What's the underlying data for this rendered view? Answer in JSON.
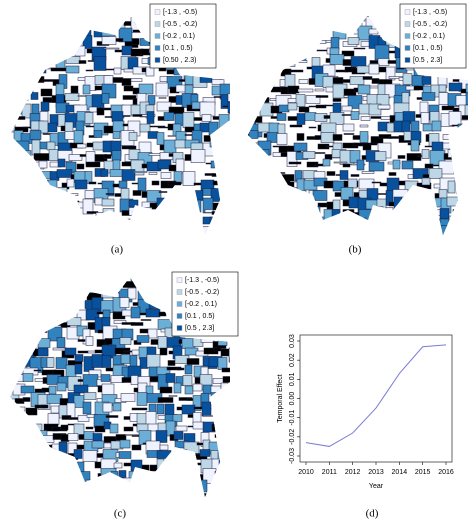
{
  "panels": [
    {
      "caption": "(a)",
      "legend": [
        "[-1.3 , -0.5)",
        "[-0.5 , -0.2)",
        "[-0.2 , 0.1)",
        "[0.1 , 0.5)",
        "[0.50 , 2.3)"
      ],
      "colors": [
        "#eff3ff",
        "#bdd7e7",
        "#6baed6",
        "#3182bd",
        "#08519c"
      ]
    },
    {
      "caption": "(b)",
      "legend": [
        "[-1.3 , -0.5)",
        "[-0.5 , -0.2)",
        "[-0.2 , 0.1)",
        "[0.1 , 0.5)",
        "[0.5 , 2.3]"
      ],
      "colors": [
        "#eff3ff",
        "#bdd7e7",
        "#6baed6",
        "#3182bd",
        "#08519c"
      ]
    },
    {
      "caption": "(c)",
      "legend": [
        "[-1.3 , -0.5)",
        "[-0.5 , -0.2)",
        "[-0.2 , 0.1)",
        "[0.1 , 0.5)",
        "[0.5 , 2.3]"
      ],
      "colors": [
        "#eff3ff",
        "#bdd7e7",
        "#6baed6",
        "#3182bd",
        "#08519c"
      ]
    }
  ],
  "chart_data": {
    "type": "line",
    "caption": "(d)",
    "x_label": "Year",
    "y_label": "Temporal Effect",
    "x": [
      2010,
      2011,
      2012,
      2013,
      2014,
      2015,
      2016
    ],
    "values": [
      -0.023,
      -0.025,
      -0.018,
      -0.005,
      0.013,
      0.027,
      0.028
    ],
    "color": "#7b7bd6",
    "xlim": [
      2010,
      2016
    ],
    "xticks": [
      2010,
      2011,
      2012,
      2013,
      2014,
      2015,
      2016
    ],
    "ylim": [
      -0.03,
      0.03
    ],
    "yticks": [
      -0.03,
      -0.02,
      -0.01,
      {
        "value": 0,
        "label": "0.00"
      },
      0.01,
      0.02,
      0.03
    ]
  }
}
